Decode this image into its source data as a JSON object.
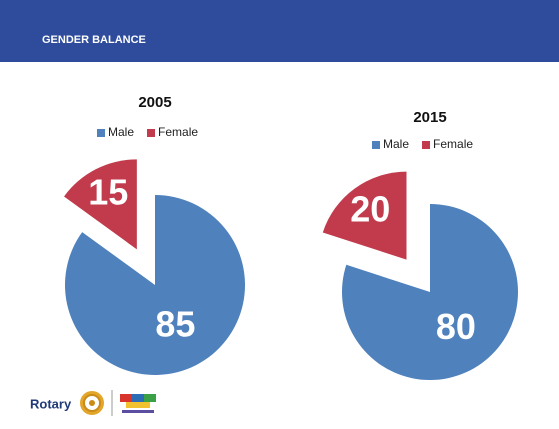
{
  "header": {
    "title": "GENDER BALANCE"
  },
  "footer": {
    "logo": "Rotary"
  },
  "chart_data": [
    {
      "type": "pie",
      "title": "2005",
      "categories": [
        "Male",
        "Female"
      ],
      "values": [
        85,
        15
      ],
      "colors": [
        "#4f81bd",
        "#c13b4c"
      ],
      "legend": "top"
    },
    {
      "type": "pie",
      "title": "2015",
      "categories": [
        "Male",
        "Female"
      ],
      "values": [
        80,
        20
      ],
      "colors": [
        "#4f81bd",
        "#c13b4c"
      ],
      "legend": "top"
    }
  ]
}
